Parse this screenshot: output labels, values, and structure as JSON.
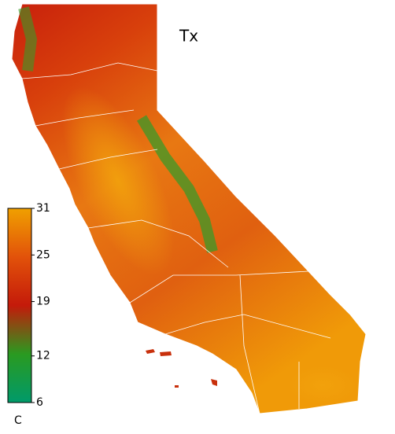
{
  "title": "Tx",
  "colorbar": {
    "lim": [
      6,
      31
    ],
    "ticks": [
      6,
      12,
      19,
      25,
      31
    ],
    "unit": "C",
    "colors": [
      "#009a6a",
      "#2a9a20",
      "#c41a0a",
      "#e2520a",
      "#f0a000"
    ]
  }
}
